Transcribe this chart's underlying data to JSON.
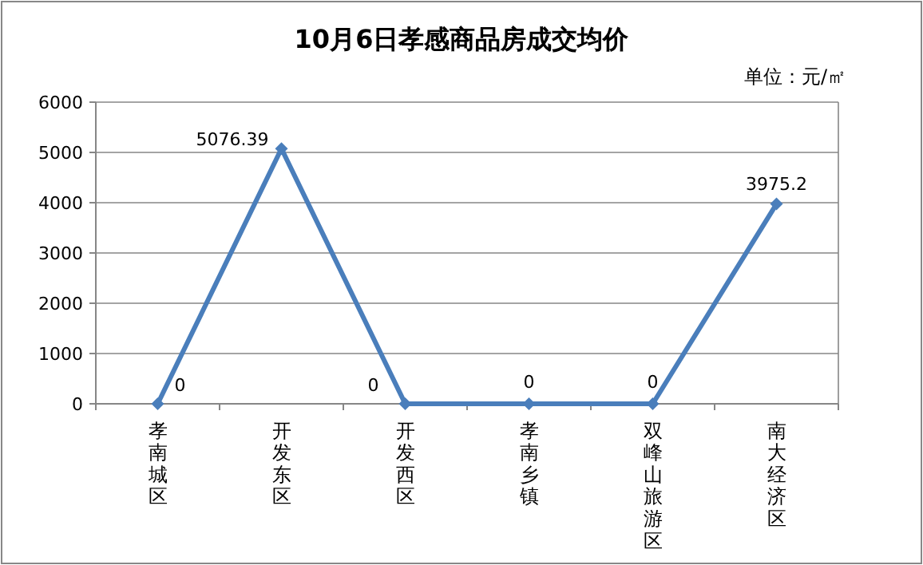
{
  "chart_data": {
    "type": "line",
    "title": "10月6日孝感商品房成交均价",
    "annotations": [
      "单位：元/㎡"
    ],
    "categories": [
      "孝南城区",
      "开发东区",
      "开发西区",
      "孝南乡镇",
      "双峰山旅游区",
      "南大经济区"
    ],
    "series": [
      {
        "color": "#4a7ebb",
        "values": [
          0,
          5076.39,
          0,
          0,
          0,
          3975.2
        ]
      }
    ],
    "ylim": [
      0,
      6000
    ],
    "yticks": [
      0,
      1000,
      2000,
      3000,
      4000,
      5000,
      6000
    ],
    "grid": "y",
    "marker": "diamond",
    "data_labels": true
  }
}
